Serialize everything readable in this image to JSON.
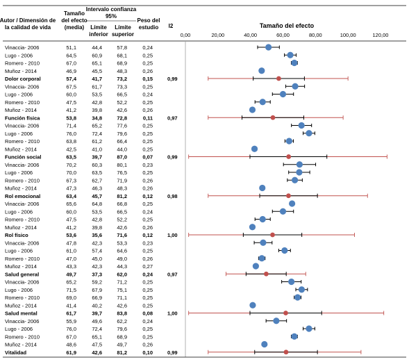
{
  "chart_data": {
    "type": "forest",
    "headers": {
      "author": "Autor / Dimensión de la calidad de vida",
      "effect": "Tamaño del efecto (media)",
      "ci_group": "Intervalo confianza 95%",
      "lower": "Límite inferior",
      "upper": "Límite superior",
      "weight": "Peso del estudio",
      "i2": "I2"
    },
    "xlabel": "Tamaño del efecto",
    "xlim": [
      0,
      120
    ],
    "xticks": [
      "0,00",
      "20,00",
      "40,00",
      "60,00",
      "80,00",
      "100,00",
      "120,00"
    ],
    "rows": [
      {
        "label": "Vinaccia- 2006",
        "effect": "51,1",
        "lower": "44,4",
        "upper": "57,8",
        "weight": "0,24",
        "i2": "",
        "summary": false,
        "x": 51.1,
        "lo": 44.4,
        "hi": 57.8
      },
      {
        "label": "Lugo - 2006",
        "effect": "64,5",
        "lower": "60,9",
        "upper": "68,1",
        "weight": "0,25",
        "i2": "",
        "summary": false,
        "x": 64.5,
        "lo": 60.9,
        "hi": 68.1
      },
      {
        "label": "Romero - 2010",
        "effect": "67,0",
        "lower": "65,1",
        "upper": "68,9",
        "weight": "0,25",
        "i2": "",
        "summary": false,
        "x": 67.0,
        "lo": 65.1,
        "hi": 68.9
      },
      {
        "label": "Muñoz - 2014",
        "effect": "46,9",
        "lower": "45,5",
        "upper": "48,3",
        "weight": "0,26",
        "i2": "",
        "summary": false,
        "x": 46.9,
        "lo": 45.5,
        "hi": 48.3
      },
      {
        "label": "Dolor corporal",
        "effect": "57,4",
        "lower": "41,7",
        "upper": "73,2",
        "weight": "0,15",
        "i2": "0,99",
        "summary": true,
        "x": 57.4,
        "lo": 41.7,
        "hi": 73.2,
        "plo": 14.0,
        "phi": 100.0
      },
      {
        "label": "Vinaccia- 2006",
        "effect": "67,5",
        "lower": "61,7",
        "upper": "73,3",
        "weight": "0,25",
        "i2": "",
        "summary": false,
        "x": 67.5,
        "lo": 61.7,
        "hi": 73.3
      },
      {
        "label": "Lugo - 2006",
        "effect": "60,0",
        "lower": "53,5",
        "upper": "66,5",
        "weight": "0,24",
        "i2": "",
        "summary": false,
        "x": 60.0,
        "lo": 53.5,
        "hi": 66.5
      },
      {
        "label": "Romero - 2010",
        "effect": "47,5",
        "lower": "42,8",
        "upper": "52,2",
        "weight": "0,25",
        "i2": "",
        "summary": false,
        "x": 47.5,
        "lo": 42.8,
        "hi": 52.2
      },
      {
        "label": "Muñoz - 2014",
        "effect": "41,2",
        "lower": "39,8",
        "upper": "42,6",
        "weight": "0,26",
        "i2": "",
        "summary": false,
        "x": 41.2,
        "lo": 39.8,
        "hi": 42.6
      },
      {
        "label": "Función física",
        "effect": "53,8",
        "lower": "34,8",
        "upper": "72,8",
        "weight": "0,11",
        "i2": "0,97",
        "summary": true,
        "x": 53.8,
        "lo": 34.8,
        "hi": 72.8,
        "plo": 14.0,
        "phi": 97.0
      },
      {
        "label": "Vinaccia- 2006",
        "effect": "71,4",
        "lower": "65,2",
        "upper": "77,6",
        "weight": "0,25",
        "i2": "",
        "summary": false,
        "x": 71.4,
        "lo": 65.2,
        "hi": 77.6
      },
      {
        "label": "Lugo - 2006",
        "effect": "76,0",
        "lower": "72,4",
        "upper": "79,6",
        "weight": "0,25",
        "i2": "",
        "summary": false,
        "x": 76.0,
        "lo": 72.4,
        "hi": 79.6
      },
      {
        "label": "Romero - 2010",
        "effect": "63,8",
        "lower": "61,2",
        "upper": "66,4",
        "weight": "0,25",
        "i2": "",
        "summary": false,
        "x": 63.8,
        "lo": 61.2,
        "hi": 66.4
      },
      {
        "label": "Muñoz - 2014",
        "effect": "42,5",
        "lower": "41,0",
        "upper": "44,0",
        "weight": "0,25",
        "i2": "",
        "summary": false,
        "x": 42.5,
        "lo": 41.0,
        "hi": 44.0
      },
      {
        "label": "Función social",
        "effect": "63,5",
        "lower": "39,7",
        "upper": "87,0",
        "weight": "0,07",
        "i2": "0,99",
        "summary": true,
        "x": 63.5,
        "lo": 39.7,
        "hi": 87.0,
        "plo": 2.0,
        "phi": 124.0
      },
      {
        "label": "Vinaccia- 2006",
        "effect": "70,2",
        "lower": "60,3",
        "upper": "80,1",
        "weight": "0,23",
        "i2": "",
        "summary": false,
        "x": 70.2,
        "lo": 60.3,
        "hi": 80.1
      },
      {
        "label": "Lugo - 2006",
        "effect": "70,0",
        "lower": "63,5",
        "upper": "76,5",
        "weight": "0,25",
        "i2": "",
        "summary": false,
        "x": 70.0,
        "lo": 63.5,
        "hi": 76.5
      },
      {
        "label": "Romero - 2010",
        "effect": "67,3",
        "lower": "62,7",
        "upper": "71,9",
        "weight": "0,26",
        "i2": "",
        "summary": false,
        "x": 67.3,
        "lo": 62.7,
        "hi": 71.9
      },
      {
        "label": "Muñoz - 2014",
        "effect": "47,3",
        "lower": "46,3",
        "upper": "48,3",
        "weight": "0,26",
        "i2": "",
        "summary": false,
        "x": 47.3,
        "lo": 46.3,
        "hi": 48.3
      },
      {
        "label": "Rol emocional",
        "effect": "63,4",
        "lower": "45,7",
        "upper": "81,2",
        "weight": "0,12",
        "i2": "0,98",
        "summary": true,
        "x": 63.4,
        "lo": 45.7,
        "hi": 81.2,
        "plo": 14.0,
        "phi": 112.0
      },
      {
        "label": "Vinaccia- 2006",
        "effect": "65,6",
        "lower": "64,8",
        "upper": "66,8",
        "weight": "0,25",
        "i2": "",
        "summary": false,
        "x": 65.6,
        "lo": 64.8,
        "hi": 66.8
      },
      {
        "label": "Lugo - 2006",
        "effect": "60,0",
        "lower": "53,5",
        "upper": "66,5",
        "weight": "0,24",
        "i2": "",
        "summary": false,
        "x": 60.0,
        "lo": 53.5,
        "hi": 66.5
      },
      {
        "label": "Romero - 2010",
        "effect": "47,5",
        "lower": "42,8",
        "upper": "52,2",
        "weight": "0,25",
        "i2": "",
        "summary": false,
        "x": 47.5,
        "lo": 42.8,
        "hi": 52.2
      },
      {
        "label": "Muñoz - 2014",
        "effect": "41,2",
        "lower": "39,8",
        "upper": "42,6",
        "weight": "0,26",
        "i2": "",
        "summary": false,
        "x": 41.2,
        "lo": 39.8,
        "hi": 42.6
      },
      {
        "label": "Rol físico",
        "effect": "53,6",
        "lower": "35,6",
        "upper": "71,6",
        "weight": "0,12",
        "i2": "1,00",
        "summary": true,
        "x": 53.6,
        "lo": 35.6,
        "hi": 71.6,
        "plo": 2.0,
        "phi": 104.0
      },
      {
        "label": "Vinaccia- 2006",
        "effect": "47,8",
        "lower": "42,3",
        "upper": "53,3",
        "weight": "0,23",
        "i2": "",
        "summary": false,
        "x": 47.8,
        "lo": 42.3,
        "hi": 53.3
      },
      {
        "label": "Lugo - 2006",
        "effect": "61,0",
        "lower": "57,4",
        "upper": "64,6",
        "weight": "0,25",
        "i2": "",
        "summary": false,
        "x": 61.0,
        "lo": 57.4,
        "hi": 64.6
      },
      {
        "label": "Romero - 2010",
        "effect": "47,0",
        "lower": "45,0",
        "upper": "49,0",
        "weight": "0,26",
        "i2": "",
        "summary": false,
        "x": 47.0,
        "lo": 45.0,
        "hi": 49.0
      },
      {
        "label": "Muñoz - 2014",
        "effect": "43,3",
        "lower": "42,3",
        "upper": "44,3",
        "weight": "0,27",
        "i2": "",
        "summary": false,
        "x": 43.3,
        "lo": 42.3,
        "hi": 44.3
      },
      {
        "label": "Salud general",
        "effect": "49,7",
        "lower": "37,3",
        "upper": "62,0",
        "weight": "0,24",
        "i2": "0,97",
        "summary": true,
        "x": 49.7,
        "lo": 37.3,
        "hi": 62.0,
        "plo": 25.0,
        "phi": 74.0
      },
      {
        "label": "Vinaccia- 2006",
        "effect": "65,2",
        "lower": "59,2",
        "upper": "71,2",
        "weight": "0,25",
        "i2": "",
        "summary": false,
        "x": 65.2,
        "lo": 59.2,
        "hi": 71.2
      },
      {
        "label": "Lugo - 2006",
        "effect": "71,5",
        "lower": "67,9",
        "upper": "75,1",
        "weight": "0,25",
        "i2": "",
        "summary": false,
        "x": 71.5,
        "lo": 67.9,
        "hi": 75.1
      },
      {
        "label": "Romero - 2010",
        "effect": "69,0",
        "lower": "66,9",
        "upper": "71,1",
        "weight": "0,25",
        "i2": "",
        "summary": false,
        "x": 69.0,
        "lo": 66.9,
        "hi": 71.1
      },
      {
        "label": "Muñoz - 2014",
        "effect": "41,4",
        "lower": "40,2",
        "upper": "42,6",
        "weight": "0,25",
        "i2": "",
        "summary": false,
        "x": 41.4,
        "lo": 40.2,
        "hi": 42.6
      },
      {
        "label": "Salud mental",
        "effect": "61,7",
        "lower": "39,7",
        "upper": "83,8",
        "weight": "0,08",
        "i2": "1,00",
        "summary": true,
        "x": 61.7,
        "lo": 39.7,
        "hi": 83.8,
        "plo": 2.0,
        "phi": 122.0
      },
      {
        "label": "Vinaccia- 2006",
        "effect": "55,9",
        "lower": "49,6",
        "upper": "62,2",
        "weight": "0,24",
        "i2": "",
        "summary": false,
        "x": 55.9,
        "lo": 49.6,
        "hi": 62.2
      },
      {
        "label": "Lugo - 2006",
        "effect": "76,0",
        "lower": "72,4",
        "upper": "79,6",
        "weight": "0,25",
        "i2": "",
        "summary": false,
        "x": 76.0,
        "lo": 72.4,
        "hi": 79.6
      },
      {
        "label": "Romero - 2010",
        "effect": "67,0",
        "lower": "65,1",
        "upper": "68,9",
        "weight": "0,25",
        "i2": "",
        "summary": false,
        "x": 67.0,
        "lo": 65.1,
        "hi": 68.9
      },
      {
        "label": "Muñoz - 2014",
        "effect": "48,6",
        "lower": "47,5",
        "upper": "49,7",
        "weight": "0,26",
        "i2": "",
        "summary": false,
        "x": 48.6,
        "lo": 47.5,
        "hi": 49.7
      },
      {
        "label": "Vitalidad",
        "effect": "61,9",
        "lower": "42,6",
        "upper": "81,2",
        "weight": "0,10",
        "i2": "0,99",
        "summary": true,
        "x": 61.9,
        "lo": 42.6,
        "hi": 81.2,
        "plo": 14.0,
        "phi": 108.0
      }
    ],
    "colors": {
      "study": "#4F81BD",
      "summary": "#C0504D",
      "ci": "#000000",
      "pred": "#C0504D",
      "grid": "#B0B0B0"
    }
  }
}
